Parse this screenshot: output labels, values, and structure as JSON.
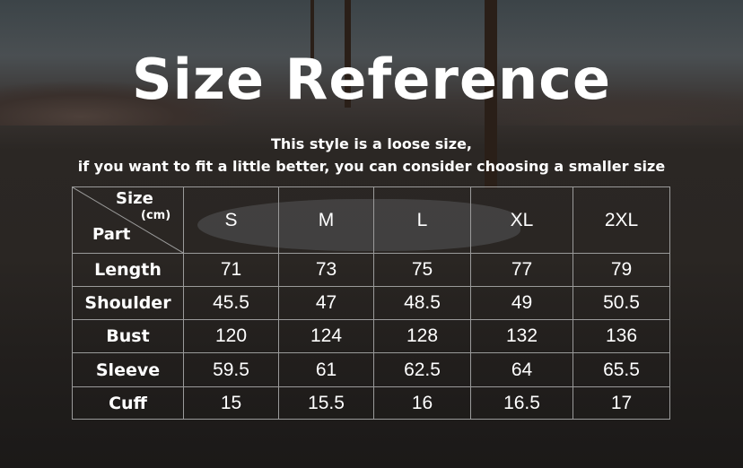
{
  "title": "Size Reference",
  "subtitle_line1": "This style is a loose size,",
  "subtitle_line2": "if you want to fit a little better, you can consider choosing a smaller size",
  "table": {
    "corner": {
      "size": "Size",
      "unit": "(cm)",
      "part": "Part"
    },
    "sizes": [
      "S",
      "M",
      "L",
      "XL",
      "2XL"
    ],
    "rows": [
      {
        "part": "Length",
        "values": [
          "71",
          "73",
          "75",
          "77",
          "79"
        ]
      },
      {
        "part": "Shoulder",
        "values": [
          "45.5",
          "47",
          "48.5",
          "49",
          "50.5"
        ]
      },
      {
        "part": "Bust",
        "values": [
          "120",
          "124",
          "128",
          "132",
          "136"
        ]
      },
      {
        "part": "Sleeve",
        "values": [
          "59.5",
          "61",
          "62.5",
          "64",
          "65.5"
        ]
      },
      {
        "part": "Cuff",
        "values": [
          "15",
          "15.5",
          "16",
          "16.5",
          "17"
        ]
      }
    ]
  }
}
